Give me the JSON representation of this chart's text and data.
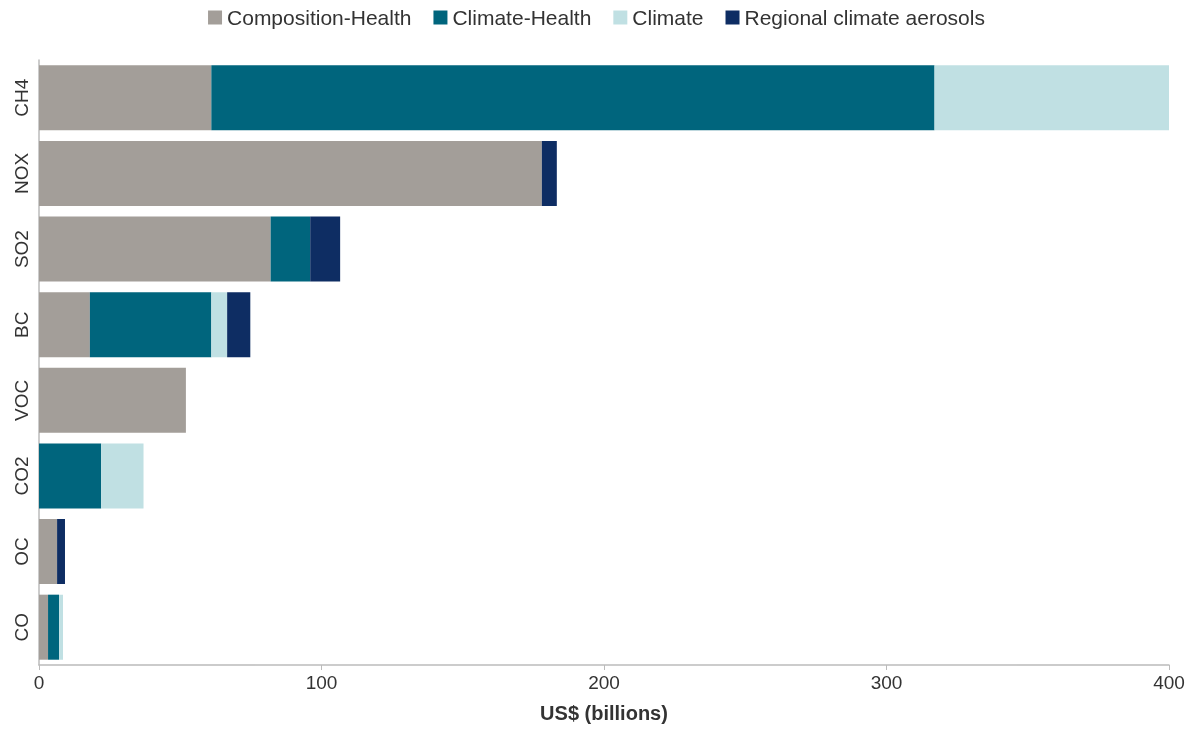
{
  "chart_data": {
    "type": "bar",
    "orientation": "horizontal",
    "stacked": true,
    "xlabel": "US$ (billions)",
    "categories": [
      "CH4",
      "NOX",
      "SO2",
      "BC",
      "VOC",
      "CO2",
      "OC",
      "CO"
    ],
    "series": [
      {
        "name": "Composition-Health",
        "color": "#a39e99",
        "values": [
          61,
          178,
          82,
          18,
          52,
          null,
          6.4,
          3.2
        ]
      },
      {
        "name": "Climate-Health",
        "color": "#00657d",
        "values": [
          256,
          null,
          14,
          43,
          null,
          22,
          null,
          3.9
        ]
      },
      {
        "name": "Climate",
        "color": "#c0e0e3",
        "values": [
          83,
          null,
          null,
          5.6,
          null,
          15,
          null,
          1.4
        ]
      },
      {
        "name": "Regional climate aerosols",
        "color": "#0e2d63",
        "values": [
          null,
          5.3,
          10.6,
          8.2,
          null,
          null,
          2.8,
          null
        ]
      }
    ],
    "xlim": [
      0,
      400
    ],
    "xticks": [
      0,
      100,
      200,
      300,
      400
    ],
    "grid": false,
    "legend": "top"
  }
}
